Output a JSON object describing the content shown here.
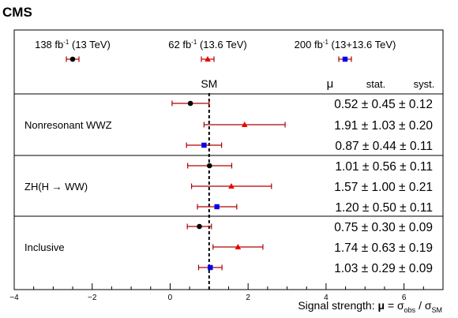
{
  "chart_data": {
    "type": "scatter",
    "experiment": "CMS",
    "xlabel": "Signal strength: μ = σobs / σSM",
    "xlim": [
      -4,
      7
    ],
    "xticks": [
      -4,
      -2,
      0,
      2,
      4,
      6
    ],
    "sm_label": "SM",
    "sm_value": 1,
    "header_mu": "μ",
    "header_stat": "stat.",
    "header_syst": "syst.",
    "legend": [
      {
        "name": "138 fb-1 (13 TeV)",
        "lumi": "138",
        "energy": "(13 TeV)",
        "marker": "circle",
        "color": "#000000"
      },
      {
        "name": "62 fb-1 (13.6 TeV)",
        "lumi": "62",
        "energy": "(13.6 TeV)",
        "marker": "triangle",
        "color": "#ee0000"
      },
      {
        "name": "200 fb-1 (13+13.6 TeV)",
        "lumi": "200",
        "energy": "(13+13.6 TeV)",
        "marker": "square",
        "color": "#0000ee"
      }
    ],
    "errorbar_color": "#b00000",
    "groups": [
      {
        "label": "Nonresonant WWZ",
        "points": [
          {
            "series": 0,
            "mu": 0.52,
            "stat": 0.45,
            "syst": 0.12,
            "lo": 0.05,
            "hi": 1.0,
            "text": "0.52 ± 0.45 ± 0.12"
          },
          {
            "series": 1,
            "mu": 1.91,
            "stat": 1.03,
            "syst": 0.2,
            "lo": 0.87,
            "hi": 2.95,
            "text": "1.91 ± 1.03 ± 0.20"
          },
          {
            "series": 2,
            "mu": 0.87,
            "stat": 0.44,
            "syst": 0.11,
            "lo": 0.42,
            "hi": 1.32,
            "text": "0.87 ± 0.44 ± 0.11"
          }
        ]
      },
      {
        "label": "ZH(H → WW)",
        "points": [
          {
            "series": 0,
            "mu": 1.01,
            "stat": 0.56,
            "syst": 0.11,
            "lo": 0.45,
            "hi": 1.58,
            "text": "1.01 ± 0.56 ± 0.11"
          },
          {
            "series": 1,
            "mu": 1.57,
            "stat": 1.0,
            "syst": 0.21,
            "lo": 0.55,
            "hi": 2.6,
            "text": "1.57 ± 1.00 ± 0.21"
          },
          {
            "series": 2,
            "mu": 1.2,
            "stat": 0.5,
            "syst": 0.11,
            "lo": 0.7,
            "hi": 1.71,
            "text": "1.20 ± 0.50 ± 0.11"
          }
        ]
      },
      {
        "label": "Inclusive",
        "points": [
          {
            "series": 0,
            "mu": 0.75,
            "stat": 0.3,
            "syst": 0.09,
            "lo": 0.44,
            "hi": 1.06,
            "text": "0.75 ± 0.30 ± 0.09"
          },
          {
            "series": 1,
            "mu": 1.74,
            "stat": 0.63,
            "syst": 0.19,
            "lo": 1.1,
            "hi": 2.38,
            "text": "1.74 ± 0.63 ± 0.19"
          },
          {
            "series": 2,
            "mu": 1.03,
            "stat": 0.29,
            "syst": 0.09,
            "lo": 0.73,
            "hi": 1.33,
            "text": "1.03 ± 0.29 ± 0.09"
          }
        ]
      }
    ]
  }
}
